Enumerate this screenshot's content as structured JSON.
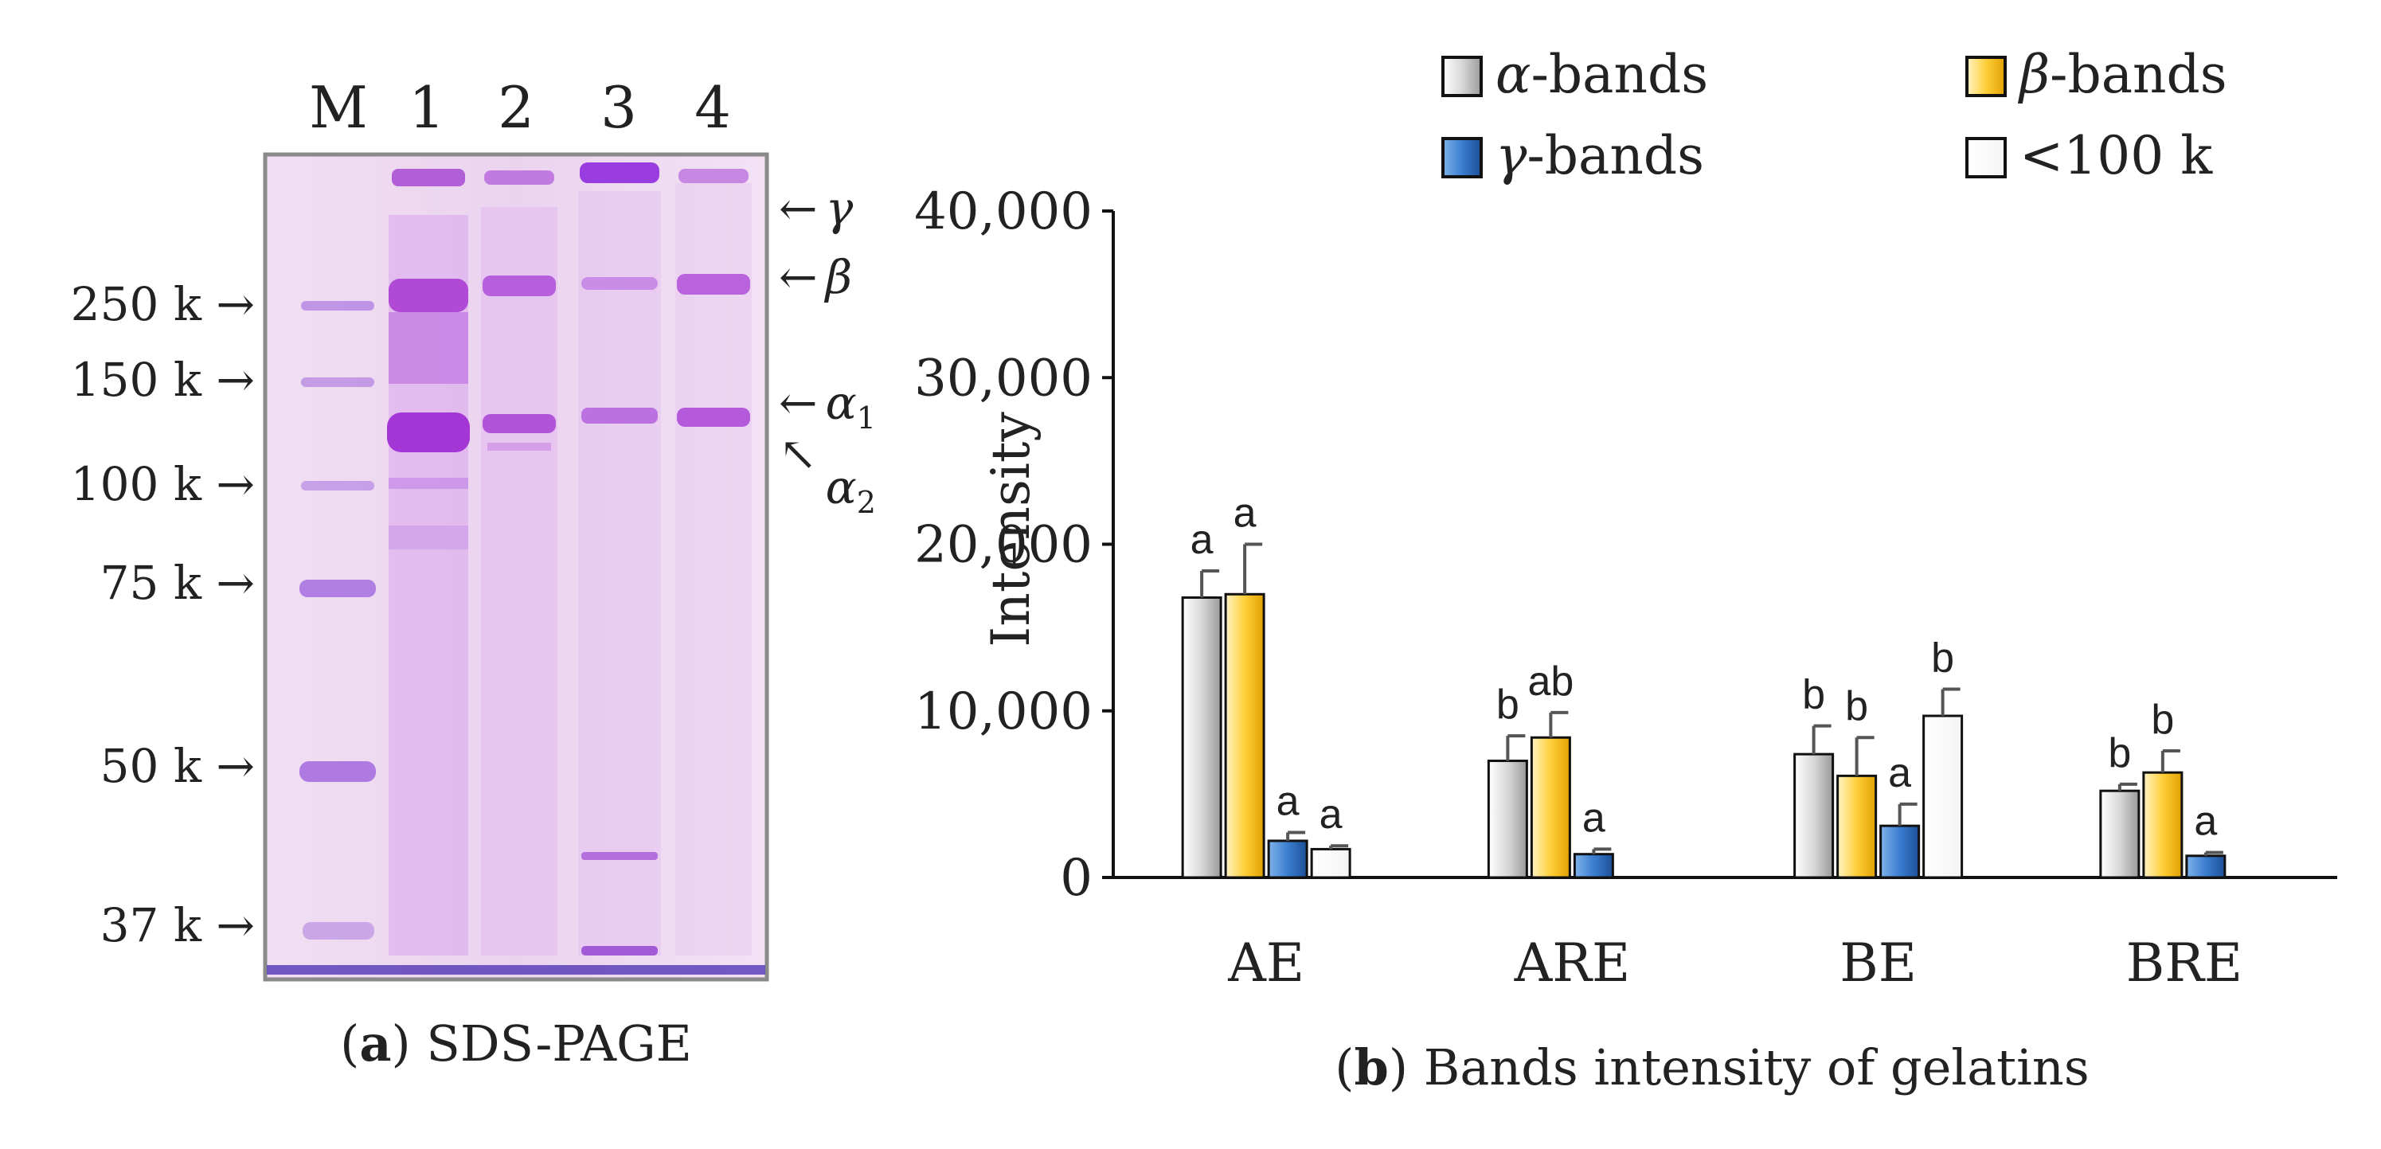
{
  "panel_a": {
    "lane_labels": [
      "M",
      "1",
      "2",
      "3",
      "4"
    ],
    "marker_labels": [
      "250 k →",
      "150 k →",
      "100 k →",
      "75 k →",
      "50 k →",
      "37 k →"
    ],
    "band_labels": [
      {
        "arrow": "←",
        "symbol": "γ"
      },
      {
        "arrow": "←",
        "symbol": "β"
      },
      {
        "arrow": "←",
        "symbol": "α",
        "sub": "1"
      },
      {
        "arrow": "↖",
        "symbol": "α",
        "sub": "2"
      }
    ],
    "caption_letter": "a",
    "caption_text": "SDS-PAGE"
  },
  "chart_data": {
    "type": "bar",
    "title": "",
    "ylabel": "Intensity",
    "xlabel": "",
    "ylim": [
      0,
      40000
    ],
    "yticks": [
      0,
      10000,
      20000,
      30000,
      40000
    ],
    "ytick_labels": [
      "0",
      "10,000",
      "20,000",
      "30,000",
      "40,000"
    ],
    "categories": [
      "AE",
      "ARE",
      "BE",
      "BRE"
    ],
    "series": [
      {
        "name": "α-bands",
        "legend_symbol": "α",
        "legend_suffix": "-bands",
        "values": [
          16800,
          7000,
          7400,
          5200
        ],
        "errors": [
          1600,
          1500,
          1700,
          400
        ],
        "letters": [
          "a",
          "b",
          "b",
          "b"
        ],
        "color": "#c8c8c8"
      },
      {
        "name": "β-bands",
        "legend_symbol": "β",
        "legend_suffix": "-bands",
        "values": [
          17000,
          8400,
          6100,
          6300
        ],
        "errors": [
          3000,
          1500,
          2300,
          1300
        ],
        "letters": [
          "a",
          "ab",
          "b",
          "b"
        ],
        "color": "#f5b800"
      },
      {
        "name": "γ-bands",
        "legend_symbol": "γ",
        "legend_suffix": "-bands",
        "values": [
          2200,
          1400,
          3100,
          1300
        ],
        "errors": [
          500,
          300,
          1300,
          200
        ],
        "letters": [
          "a",
          "a",
          "a",
          "a"
        ],
        "color": "#2f6fbf"
      },
      {
        "name": "<100 k",
        "legend_symbol": "",
        "legend_suffix": "<100 k",
        "values": [
          1700,
          null,
          9700,
          null
        ],
        "errors": [
          200,
          null,
          1600,
          null
        ],
        "letters": [
          "a",
          "",
          "b",
          ""
        ],
        "color": "#ffffff"
      }
    ],
    "caption_letter": "b",
    "caption_text": "Bands intensity of gelatins"
  }
}
